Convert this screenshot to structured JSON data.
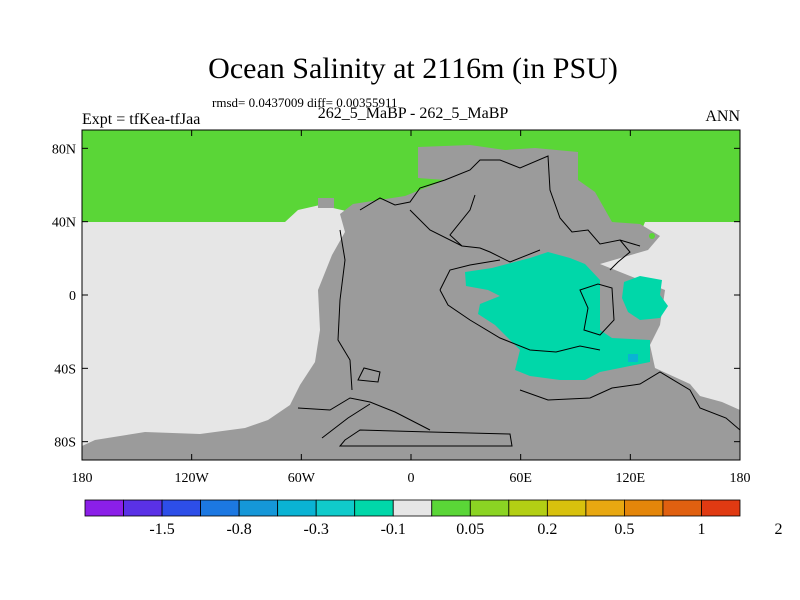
{
  "title": "Ocean Salinity at 2116m (in PSU)",
  "stats": "rmsd= 0.0437009  diff= 0.00355911",
  "subtitle": "262_5_MaBP - 262_5_MaBP",
  "left_label": "Expt = tfKea-tfJaa",
  "right_label": "ANN",
  "map": {
    "projection": "cylindrical equidistant",
    "lon_range": [
      -180,
      180
    ],
    "lat_range": [
      -90,
      90
    ],
    "x_ticks": [
      {
        "lon": -180,
        "label": "180"
      },
      {
        "lon": -120,
        "label": "120W"
      },
      {
        "lon": -60,
        "label": "60W"
      },
      {
        "lon": 0,
        "label": "0"
      },
      {
        "lon": 60,
        "label": "60E"
      },
      {
        "lon": 120,
        "label": "120E"
      },
      {
        "lon": 180,
        "label": "180"
      }
    ],
    "y_ticks": [
      {
        "lat": 80,
        "label": "80N"
      },
      {
        "lat": 40,
        "label": "40N"
      },
      {
        "lat": 0,
        "label": "0"
      },
      {
        "lat": -40,
        "label": "40S"
      },
      {
        "lat": -80,
        "label": "80S"
      }
    ],
    "colors": {
      "land": "#9b9b9b",
      "near_zero": "#e6e6e6",
      "positive_small": "#5ad637",
      "negative_small": "#00d7a9"
    }
  },
  "colorbar": {
    "colors": [
      "#8b1fe8",
      "#5a31e6",
      "#2d4ee8",
      "#1c78e2",
      "#1597d8",
      "#0ab3d4",
      "#10cbcb",
      "#00d7a9",
      "#e6e6e6",
      "#5ad637",
      "#8bd423",
      "#b3cf14",
      "#d8c10d",
      "#e8a811",
      "#e4860a",
      "#e06010",
      "#e03a12"
    ],
    "labels": [
      "-1.5",
      "-0.8",
      "-0.3",
      "-0.1",
      "0.05",
      "0.2",
      "0.5",
      "1",
      "2"
    ]
  }
}
